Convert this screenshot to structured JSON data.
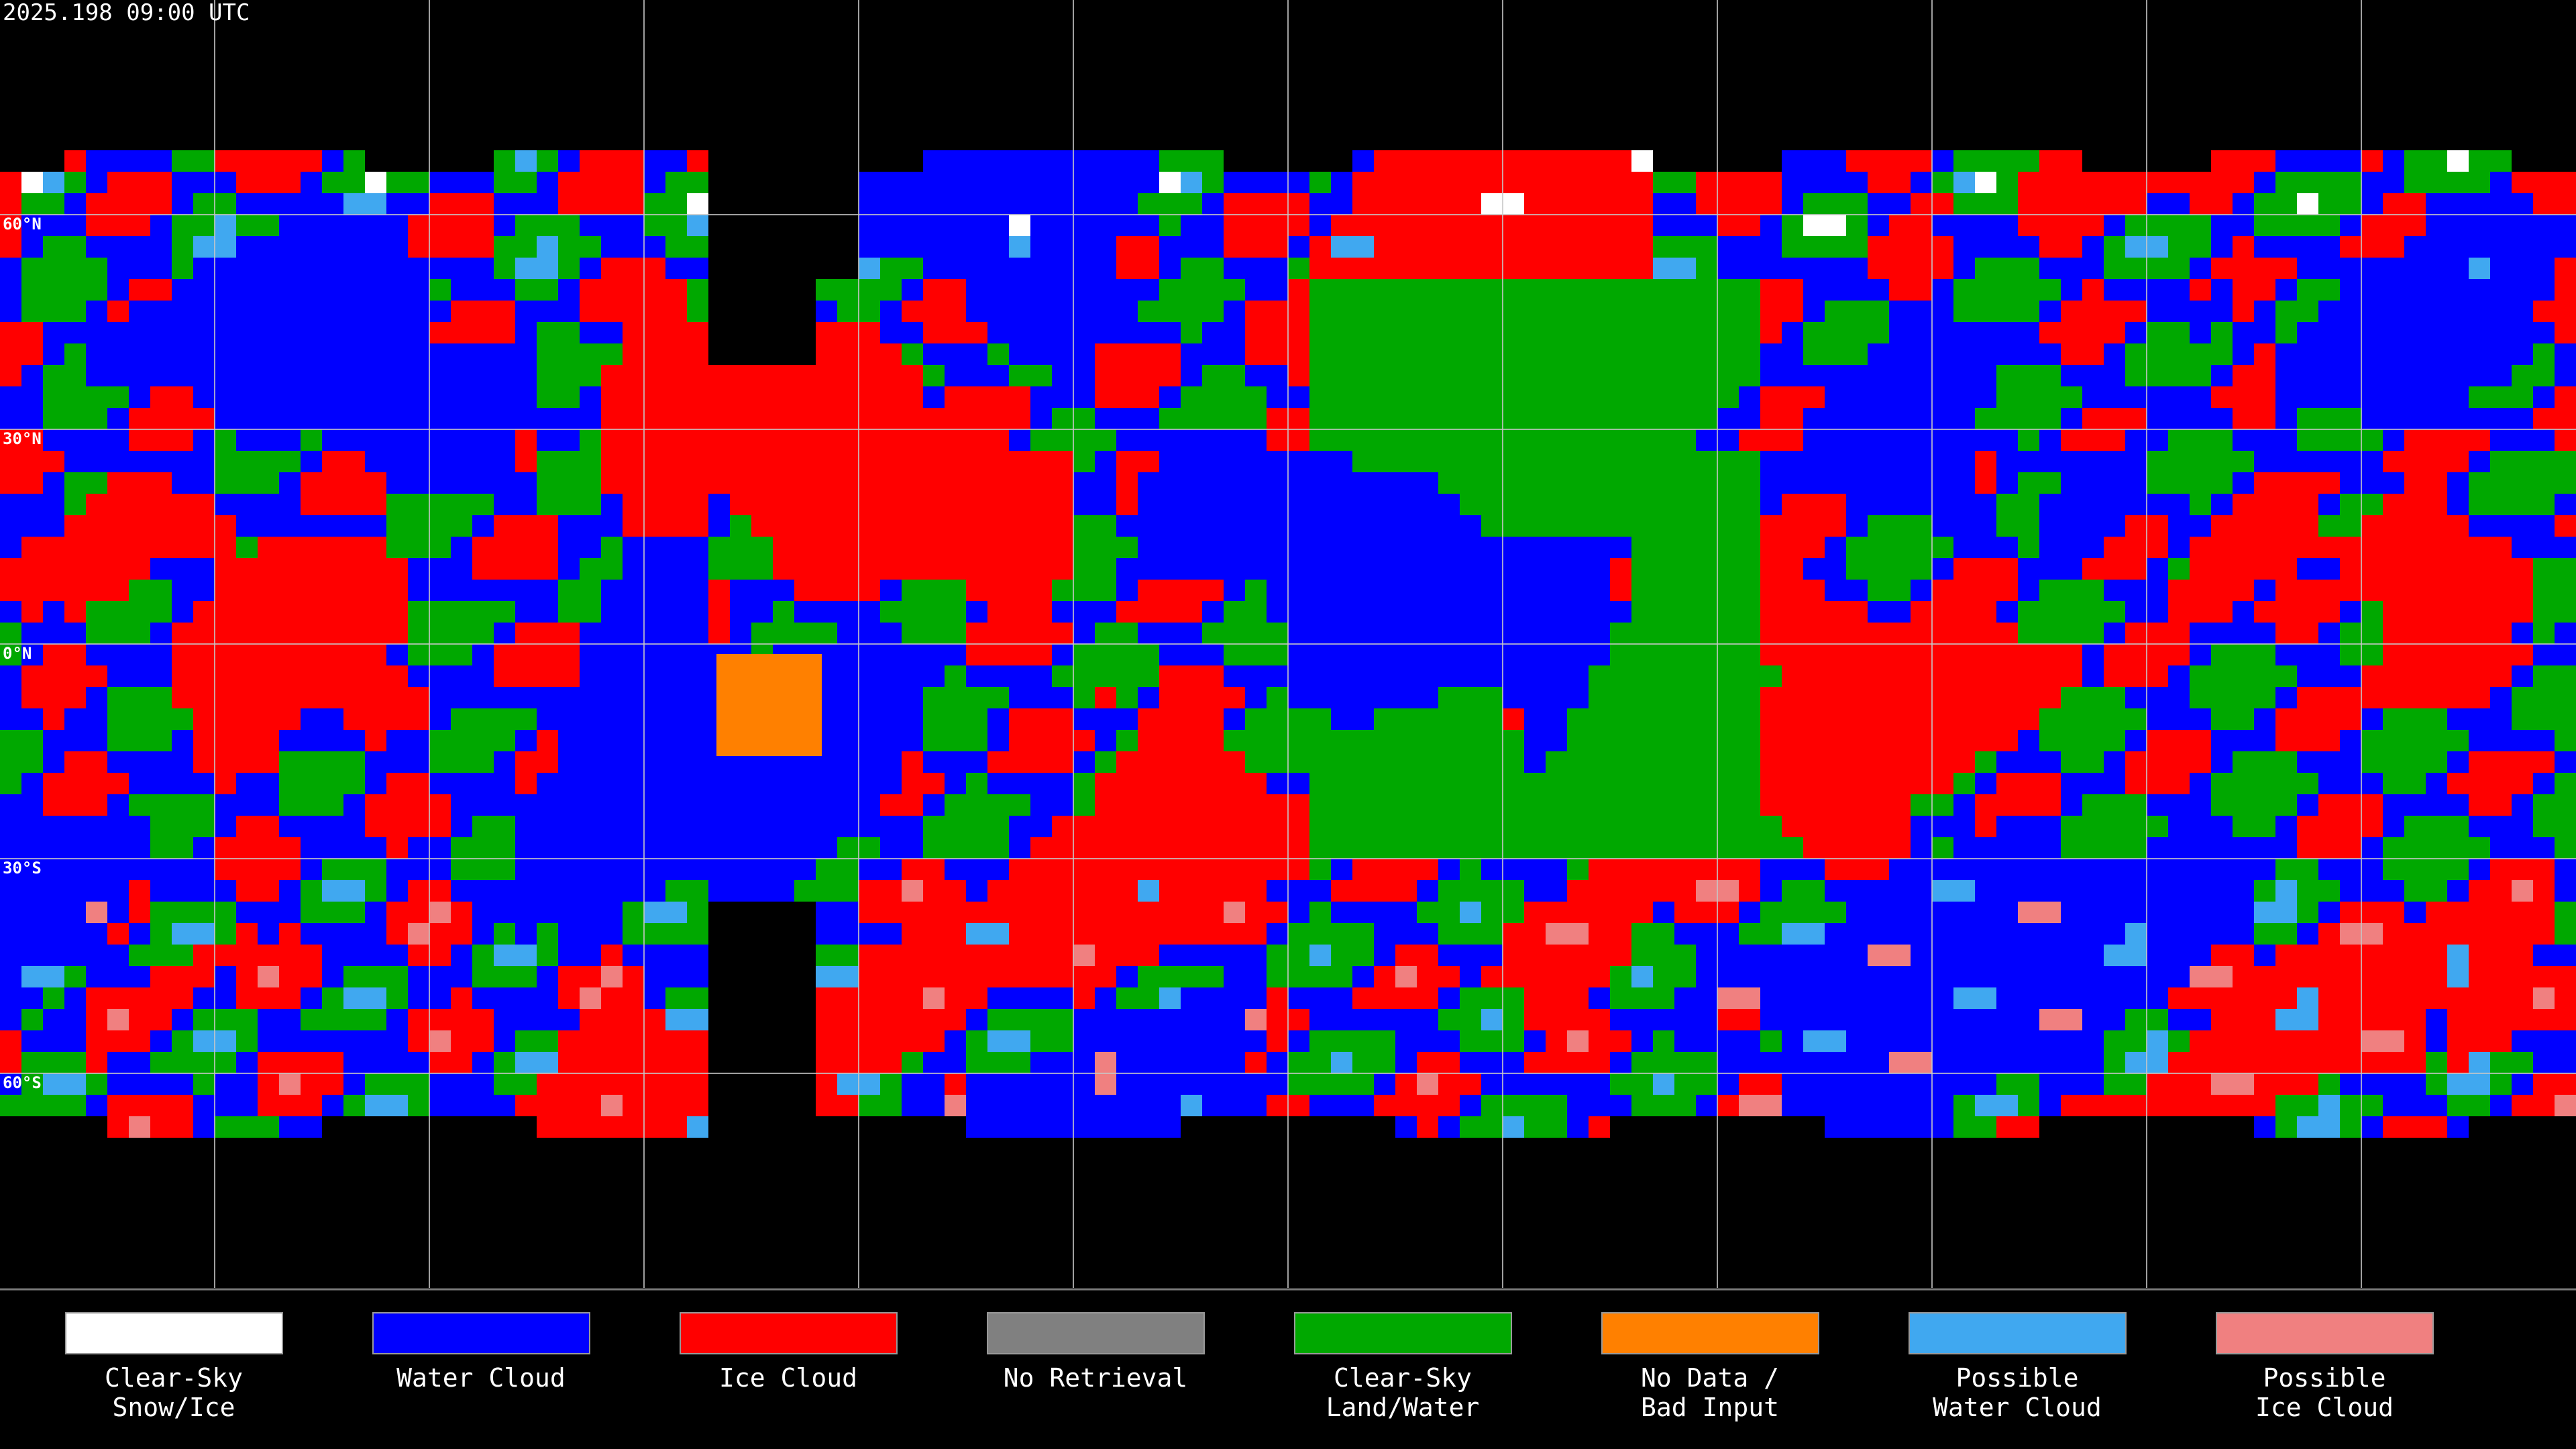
{
  "title": "2025.198 09:00 UTC",
  "lat_labels": [
    "60°N",
    "30°N",
    "0°N",
    "30°S",
    "60°S"
  ],
  "legend": [
    {
      "label": [
        "Clear-Sky",
        "Snow/Ice"
      ],
      "color": "#ffffff"
    },
    {
      "label": [
        "Water Cloud"
      ],
      "color": "#0000ff"
    },
    {
      "label": [
        "Ice Cloud"
      ],
      "color": "#ff0000"
    },
    {
      "label": [
        "No Retrieval"
      ],
      "color": "#808080"
    },
    {
      "label": [
        "Clear-Sky",
        "Land/Water"
      ],
      "color": "#00a800"
    },
    {
      "label": [
        "No Data /",
        "Bad Input"
      ],
      "color": "#ff8000"
    },
    {
      "label": [
        "Possible",
        "Water Cloud"
      ],
      "color": "#40a8f0"
    },
    {
      "label": [
        "Possible",
        "Ice Cloud"
      ],
      "color": "#f08080"
    }
  ]
}
